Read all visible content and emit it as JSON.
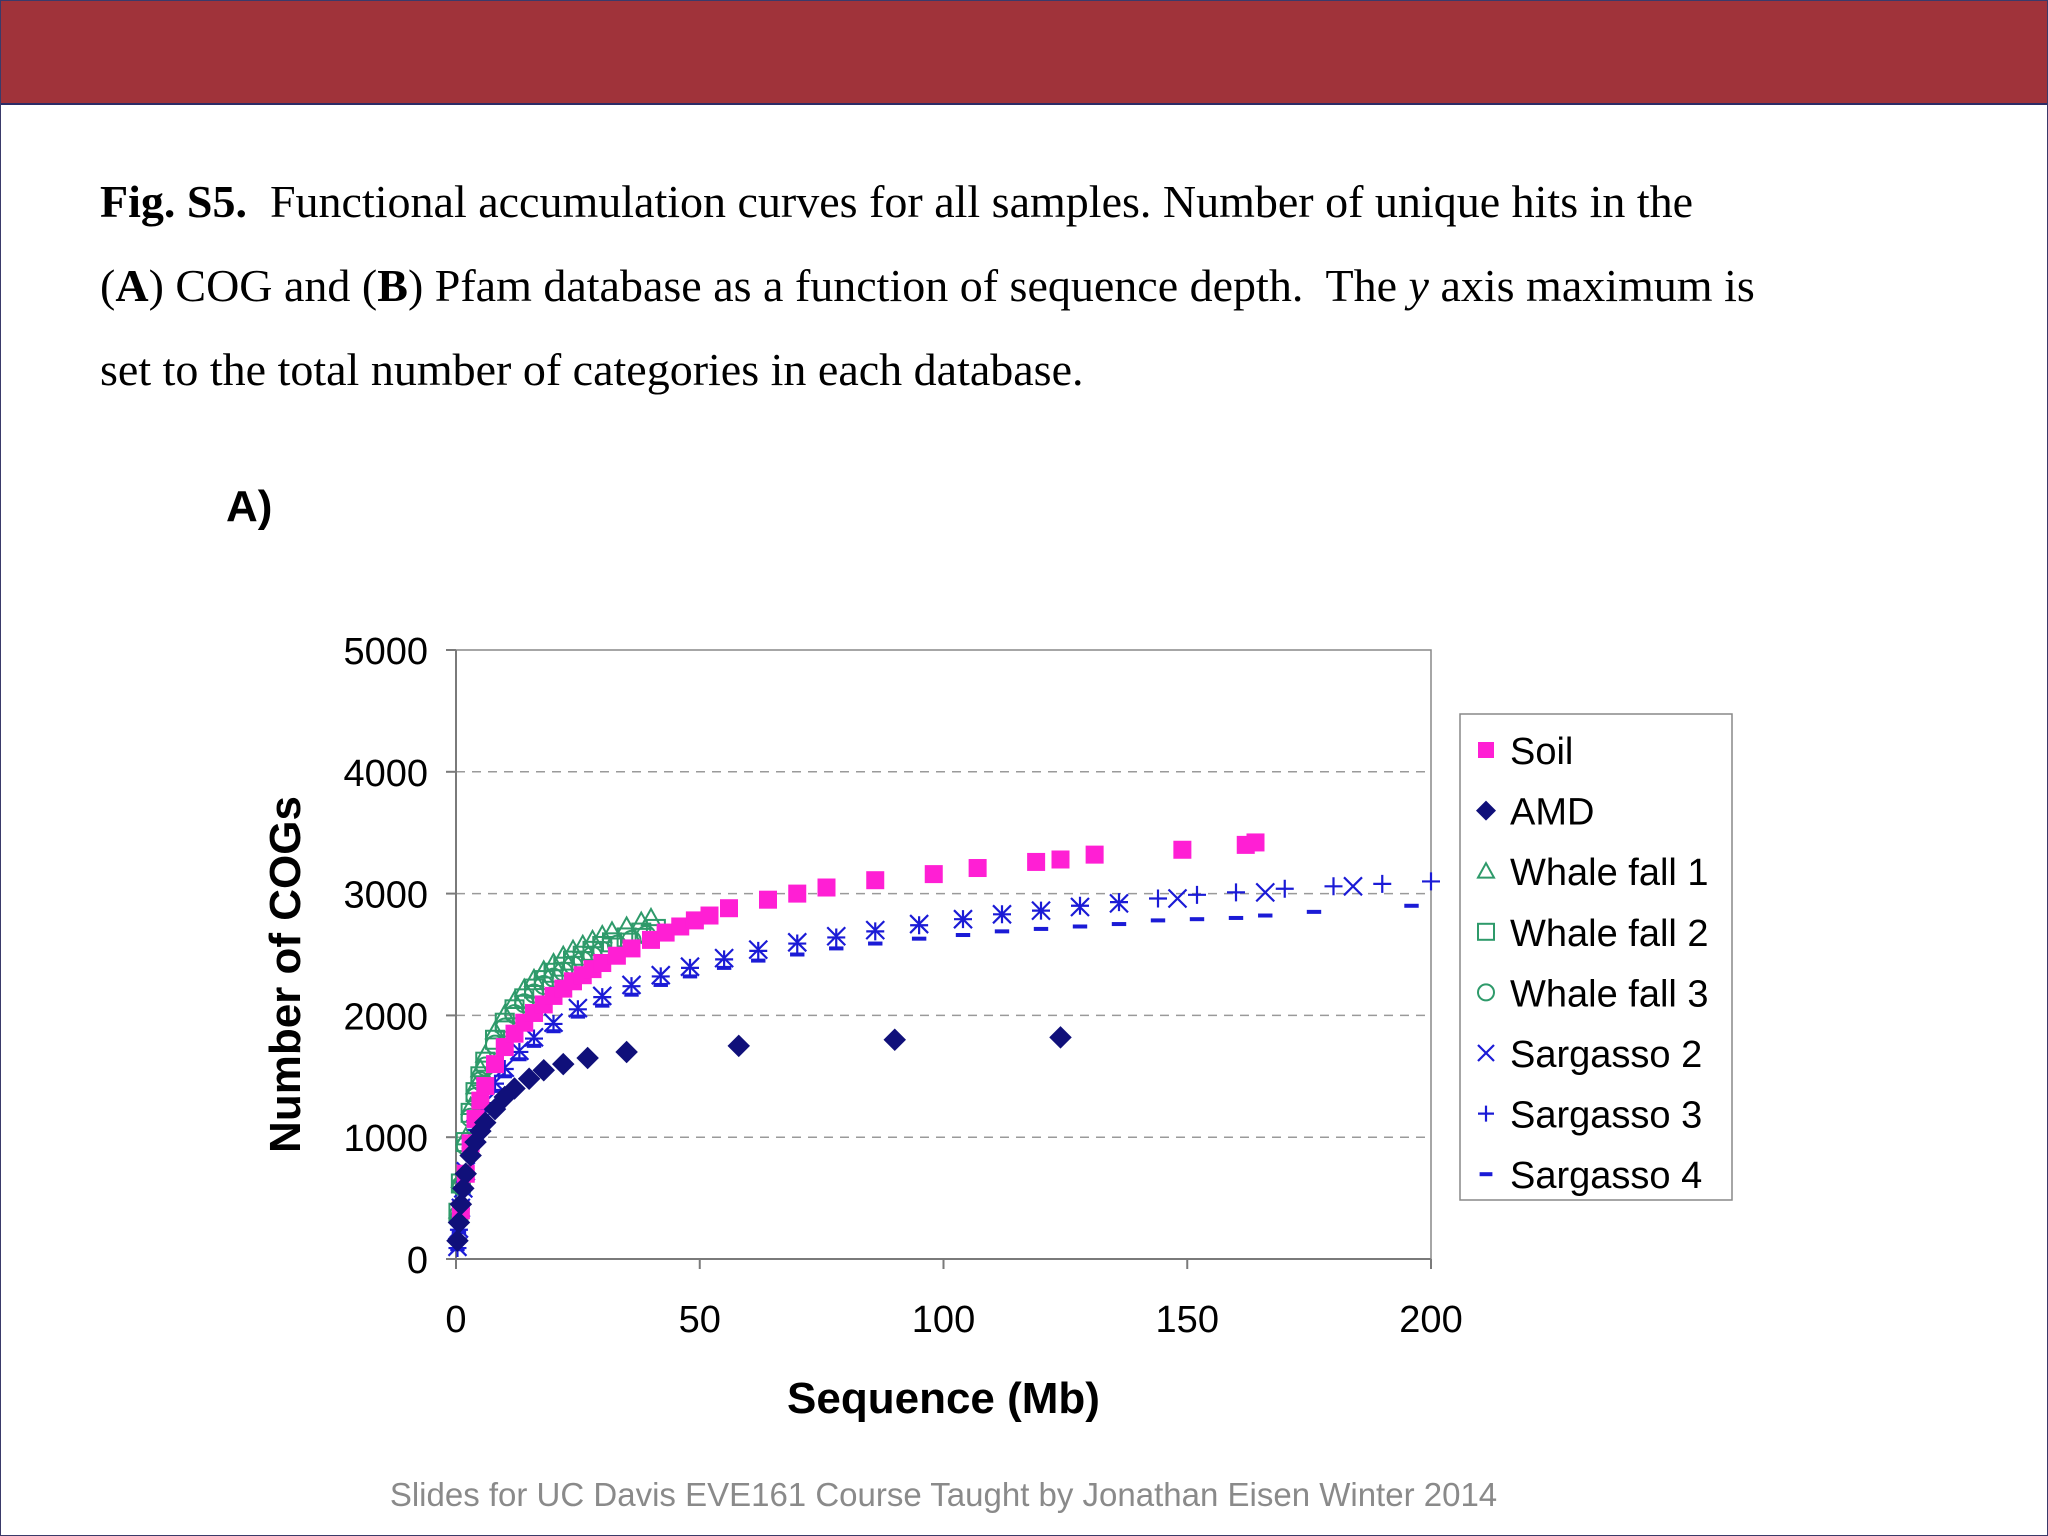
{
  "slide": {
    "caption": {
      "fig_label": "Fig. S5.",
      "line1_rest": "Functional accumulation curves for all samples.  Number of unique hits in the",
      "open_a": "(",
      "a_label": "A",
      "mid1": ") COG and (",
      "b_label": "B",
      "mid2": ") Pfam database as a function of sequence depth.  The ",
      "y_word": "y",
      "mid3": " axis maximum is",
      "line3": "set to the total number of categories in each database."
    },
    "panel_label": "A)",
    "footer": "Slides for UC Davis EVE161 Course Taught by Jonathan Eisen Winter 2014",
    "colors": {
      "top_bar": "#a0333a",
      "frame": "#3a3a6a"
    }
  },
  "chart_data": {
    "type": "scatter",
    "title": "",
    "xlabel": "Sequence (Mb)",
    "ylabel": "Number of COGs",
    "xlim": [
      0,
      200
    ],
    "ylim": [
      0,
      5000
    ],
    "xticks": [
      0,
      50,
      100,
      150,
      200
    ],
    "yticks": [
      0,
      1000,
      2000,
      3000,
      4000,
      5000
    ],
    "xtick_labels": [
      "0",
      "50",
      "100",
      "150",
      "200"
    ],
    "ytick_labels": [
      "0",
      "1000",
      "2000",
      "3000",
      "4000",
      "5000"
    ],
    "grid": "horizontal dashed",
    "legend_position": "right",
    "series": [
      {
        "name": "Soil",
        "marker": "square",
        "color": "#ff1fd4",
        "x": [
          1,
          2,
          3,
          4,
          5,
          6,
          8,
          10,
          12,
          14,
          16,
          18,
          20,
          22,
          24,
          26,
          28,
          30,
          33,
          36,
          40,
          43,
          46,
          49,
          52,
          56,
          64,
          70,
          76,
          86,
          98,
          107,
          119,
          124,
          131,
          149,
          162,
          164
        ],
        "y": [
          400,
          700,
          950,
          1150,
          1300,
          1420,
          1600,
          1740,
          1850,
          1940,
          2020,
          2090,
          2160,
          2220,
          2280,
          2330,
          2380,
          2430,
          2490,
          2550,
          2620,
          2680,
          2730,
          2780,
          2820,
          2880,
          2950,
          3000,
          3050,
          3110,
          3160,
          3210,
          3260,
          3280,
          3320,
          3360,
          3400,
          3420
        ]
      },
      {
        "name": "AMD",
        "marker": "diamond",
        "color": "#10107a",
        "x": [
          0.3,
          0.6,
          1,
          1.5,
          2,
          3,
          4,
          5,
          6,
          8,
          10,
          12,
          15,
          18,
          22,
          27,
          35,
          58,
          90,
          124
        ],
        "y": [
          150,
          300,
          450,
          580,
          700,
          850,
          960,
          1050,
          1120,
          1230,
          1330,
          1400,
          1480,
          1550,
          1600,
          1650,
          1700,
          1750,
          1800,
          1820
        ]
      },
      {
        "name": "Whale fall 1",
        "marker": "triangle-open",
        "color": "#2e9a6a",
        "x": [
          0.5,
          1,
          2,
          3,
          4,
          5,
          6,
          8,
          10,
          12,
          14,
          16,
          18,
          20,
          22,
          24,
          26,
          28,
          30,
          32,
          35,
          38,
          40
        ],
        "y": [
          400,
          650,
          1000,
          1250,
          1420,
          1560,
          1680,
          1870,
          2010,
          2120,
          2220,
          2300,
          2370,
          2430,
          2490,
          2540,
          2580,
          2620,
          2660,
          2690,
          2730,
          2770,
          2800
        ]
      },
      {
        "name": "Whale fall 2",
        "marker": "square-open",
        "color": "#2e9a6a",
        "x": [
          0.5,
          1,
          2,
          3,
          4,
          5,
          6,
          8,
          10,
          12,
          14,
          16,
          18,
          20,
          22,
          24,
          26,
          28,
          30,
          32,
          35,
          38,
          41
        ],
        "y": [
          380,
          620,
          960,
          1200,
          1370,
          1500,
          1620,
          1800,
          1940,
          2050,
          2140,
          2220,
          2290,
          2350,
          2400,
          2450,
          2490,
          2530,
          2570,
          2600,
          2640,
          2680,
          2710
        ]
      },
      {
        "name": "Whale fall 3",
        "marker": "circle-open",
        "color": "#2e9a6a",
        "x": [
          0.5,
          1,
          2,
          3,
          4,
          5,
          6,
          8,
          10,
          12,
          14,
          16,
          18,
          20,
          22,
          24,
          26,
          28,
          30,
          33,
          36,
          39
        ],
        "y": [
          360,
          600,
          930,
          1160,
          1330,
          1460,
          1580,
          1760,
          1900,
          2010,
          2100,
          2180,
          2250,
          2310,
          2360,
          2410,
          2450,
          2490,
          2530,
          2580,
          2620,
          2660
        ]
      },
      {
        "name": "Sargasso 2",
        "marker": "x",
        "color": "#1b1bd6",
        "x": [
          0.3,
          0.6,
          1,
          1.5,
          2,
          3,
          4,
          5,
          6,
          8,
          10,
          13,
          16,
          20,
          25,
          30,
          36,
          42,
          48,
          55,
          62,
          70,
          78,
          86,
          95,
          104,
          112,
          120,
          128,
          136,
          148,
          166,
          184
        ],
        "y": [
          100,
          250,
          420,
          580,
          720,
          920,
          1070,
          1190,
          1290,
          1450,
          1570,
          1710,
          1820,
          1940,
          2060,
          2160,
          2250,
          2330,
          2400,
          2470,
          2540,
          2600,
          2650,
          2700,
          2750,
          2790,
          2830,
          2860,
          2890,
          2920,
          2960,
          3010,
          3060
        ]
      },
      {
        "name": "Sargasso 3",
        "marker": "plus",
        "color": "#1b1bd6",
        "x": [
          0.3,
          0.6,
          1,
          1.5,
          2,
          3,
          4,
          5,
          6,
          8,
          10,
          13,
          16,
          20,
          25,
          30,
          36,
          42,
          48,
          55,
          62,
          70,
          78,
          86,
          95,
          104,
          112,
          120,
          128,
          136,
          144,
          152,
          160,
          170,
          180,
          190,
          200
        ],
        "y": [
          90,
          240,
          410,
          570,
          710,
          910,
          1060,
          1180,
          1280,
          1440,
          1560,
          1700,
          1810,
          1930,
          2050,
          2150,
          2240,
          2320,
          2390,
          2460,
          2530,
          2590,
          2640,
          2690,
          2740,
          2790,
          2830,
          2860,
          2900,
          2930,
          2960,
          2990,
          3010,
          3040,
          3060,
          3080,
          3100
        ]
      },
      {
        "name": "Sargasso 4",
        "marker": "dash",
        "color": "#1b1bd6",
        "x": [
          0.3,
          0.6,
          1,
          1.5,
          2,
          3,
          4,
          5,
          6,
          8,
          10,
          13,
          16,
          20,
          25,
          30,
          36,
          42,
          48,
          55,
          62,
          70,
          78,
          86,
          95,
          104,
          112,
          120,
          128,
          136,
          144,
          152,
          160,
          166,
          176,
          196
        ],
        "y": [
          80,
          220,
          380,
          540,
          670,
          860,
          1000,
          1120,
          1220,
          1380,
          1500,
          1640,
          1750,
          1870,
          1990,
          2080,
          2170,
          2250,
          2320,
          2390,
          2450,
          2500,
          2550,
          2590,
          2630,
          2660,
          2690,
          2710,
          2730,
          2750,
          2780,
          2790,
          2800,
          2820,
          2850,
          2900
        ]
      }
    ]
  }
}
